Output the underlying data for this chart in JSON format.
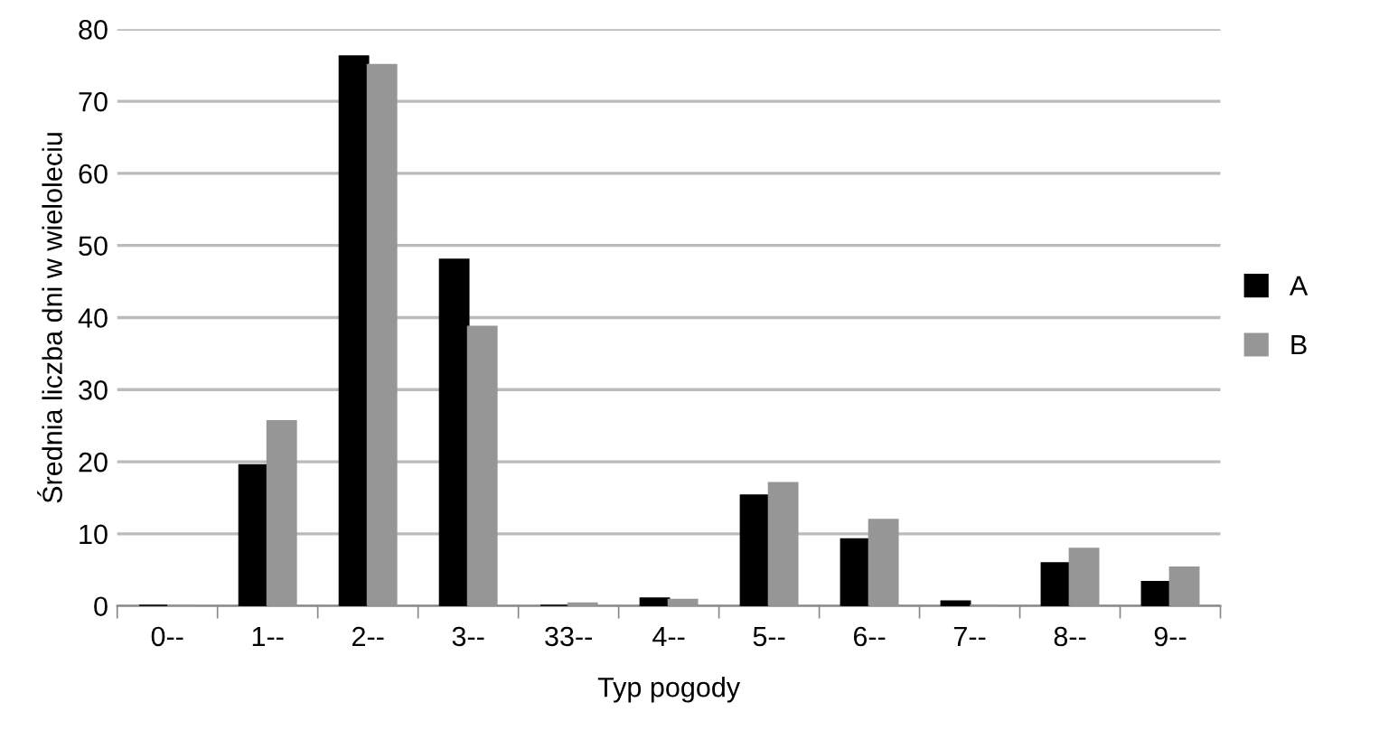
{
  "chart_data": {
    "type": "bar",
    "xlabel": "Typ pogody",
    "ylabel": "Średnia liczba dni w wieloleciu",
    "categories": [
      "0--",
      "1--",
      "2--",
      "3--",
      "33--",
      "4--",
      "5--",
      "6--",
      "7--",
      "8--",
      "9--"
    ],
    "series": [
      {
        "name": "A",
        "color": "#000000",
        "values": [
          0,
          19.5,
          76.2,
          48,
          0,
          1,
          15.3,
          9.2,
          0.6,
          5.9,
          3.3
        ]
      },
      {
        "name": "B",
        "color": "#969696",
        "values": [
          0,
          25.6,
          75,
          38.7,
          0.3,
          0.8,
          17,
          11.9,
          0,
          7.9,
          5.3
        ]
      }
    ],
    "ylim": [
      0,
      80
    ],
    "yticks": [
      0,
      10,
      20,
      30,
      40,
      50,
      60,
      70,
      80
    ],
    "grid": "y",
    "legend": "right"
  }
}
